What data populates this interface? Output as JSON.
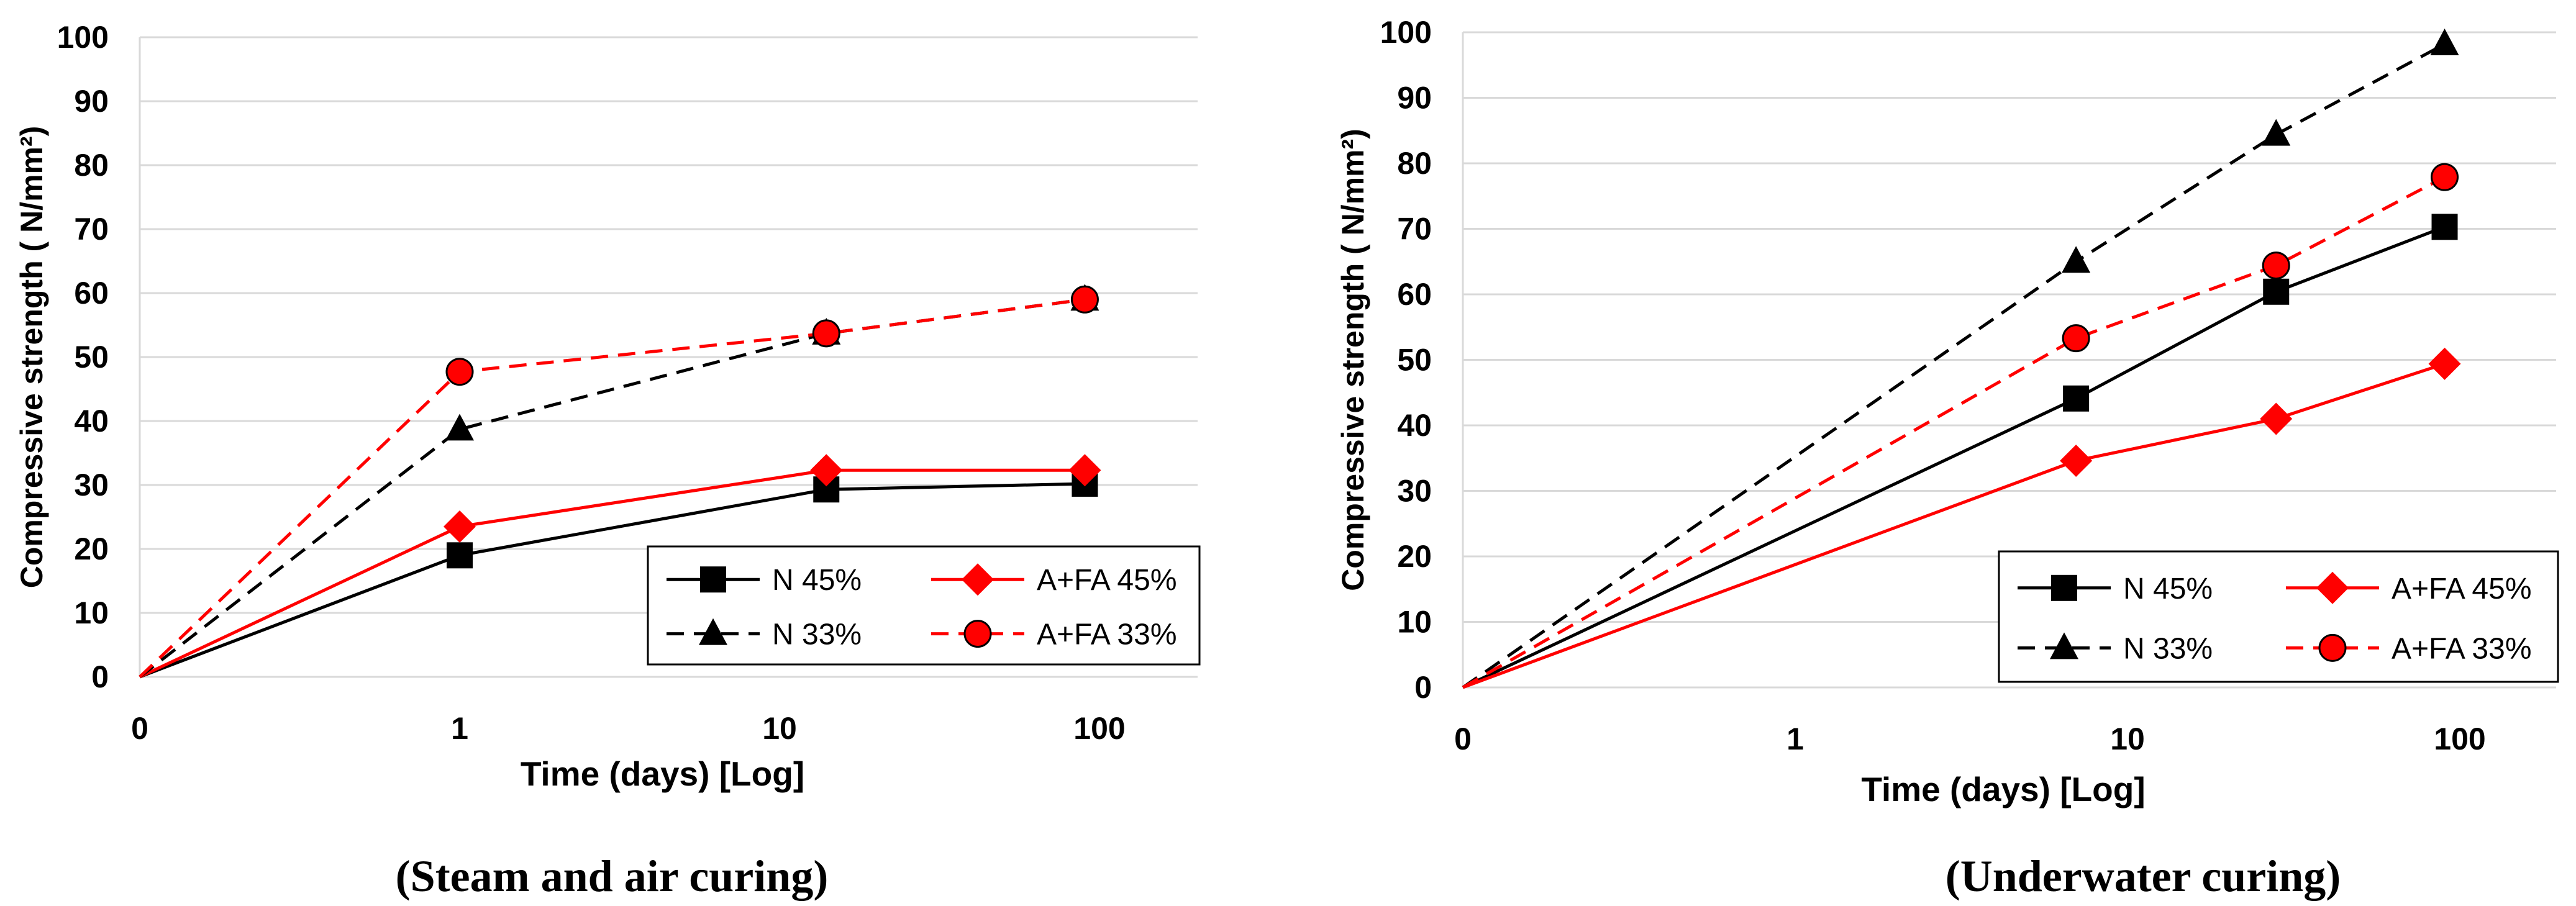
{
  "chart_data": [
    {
      "type": "line",
      "title": "",
      "caption": "(Steam and air curing)",
      "xlabel": "Time (days) [Log]",
      "ylabel": "Compressive strength ( N/mm²)",
      "x_scale": "log",
      "x_ticks": [
        "0",
        "1",
        "10",
        "100"
      ],
      "ylim": [
        0,
        100
      ],
      "y_ticks": [
        "0",
        "10",
        "20",
        "30",
        "40",
        "50",
        "60",
        "70",
        "80",
        "90",
        "100"
      ],
      "legend_position": "bottom-right",
      "series": [
        {
          "name": "N 45%",
          "color": "#000000",
          "dash": "solid",
          "marker": "square",
          "x": [
            0,
            1,
            14,
            90
          ],
          "values": [
            0,
            19,
            29.3,
            30.2
          ]
        },
        {
          "name": "A+FA 45%",
          "color": "#ff0000",
          "dash": "solid",
          "marker": "diamond",
          "x": [
            0,
            1,
            14,
            90
          ],
          "values": [
            0,
            23.5,
            32.3,
            32.3
          ]
        },
        {
          "name": "N 33%",
          "color": "#000000",
          "dash": "dashed",
          "marker": "triangle",
          "x": [
            0,
            1,
            14,
            90
          ],
          "values": [
            0,
            38.7,
            53.7,
            59
          ]
        },
        {
          "name": "A+FA 33%",
          "color": "#ff0000",
          "dash": "dashed",
          "marker": "circle",
          "x": [
            0,
            1,
            14,
            90
          ],
          "values": [
            0,
            47.7,
            53.7,
            59
          ]
        }
      ]
    },
    {
      "type": "line",
      "title": "",
      "caption": "(Underwater curing)",
      "xlabel": "Time (days) [Log]",
      "ylabel": "Compressive strength ( N/mm²)",
      "x_scale": "log",
      "x_ticks": [
        "0",
        "1",
        "10",
        "100"
      ],
      "ylim": [
        0,
        100
      ],
      "y_ticks": [
        "0",
        "10",
        "20",
        "30",
        "40",
        "50",
        "60",
        "70",
        "80",
        "90",
        "100"
      ],
      "legend_position": "bottom-right",
      "series": [
        {
          "name": "N 45%",
          "color": "#000000",
          "dash": "solid",
          "marker": "square",
          "x": [
            0,
            7,
            28,
            90
          ],
          "values": [
            0,
            44.1,
            60.4,
            70.3
          ]
        },
        {
          "name": "A+FA 45%",
          "color": "#ff0000",
          "dash": "solid",
          "marker": "diamond",
          "x": [
            0,
            7,
            28,
            90
          ],
          "values": [
            0,
            34.6,
            41,
            49.4
          ]
        },
        {
          "name": "N 33%",
          "color": "#000000",
          "dash": "dashed",
          "marker": "triangle",
          "x": [
            0,
            7,
            28,
            90
          ],
          "values": [
            0,
            65,
            84.4,
            98.2
          ]
        },
        {
          "name": "A+FA 33%",
          "color": "#ff0000",
          "dash": "dashed",
          "marker": "circle",
          "x": [
            0,
            7,
            28,
            90
          ],
          "values": [
            0,
            53.3,
            64.4,
            77.9
          ]
        }
      ]
    }
  ]
}
